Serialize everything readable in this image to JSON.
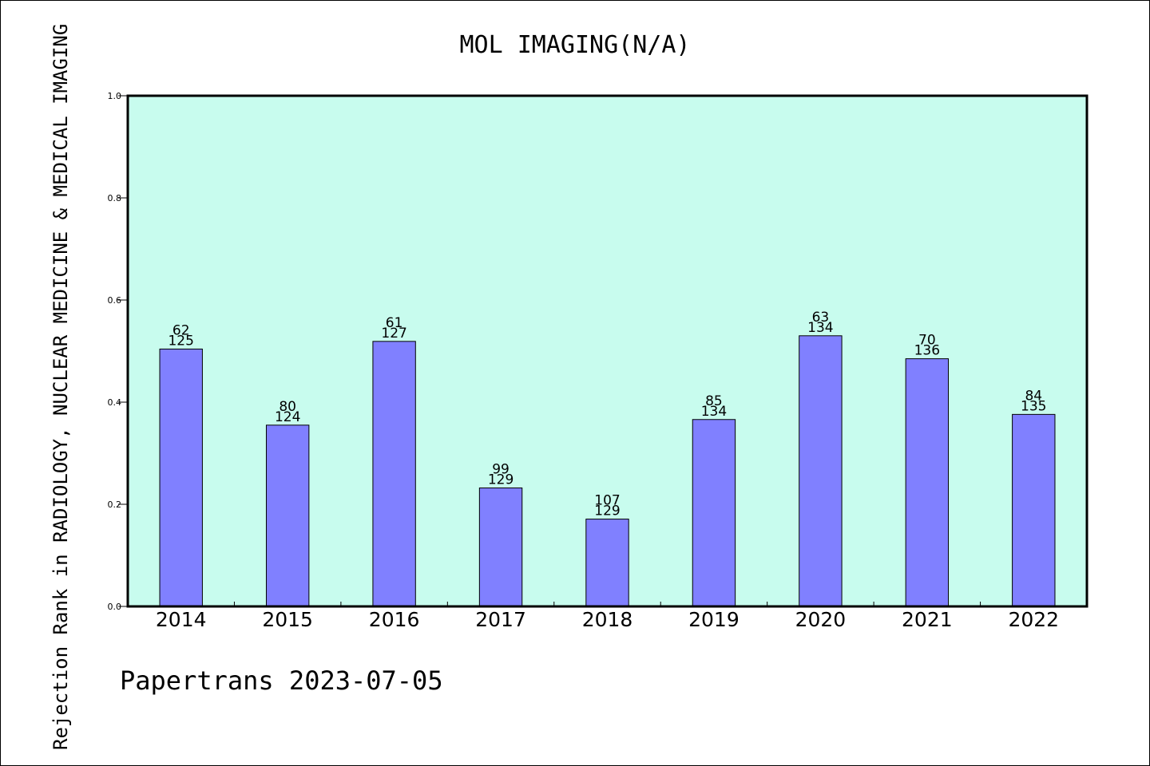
{
  "chart_data": {
    "type": "bar",
    "title": "MOL IMAGING(N/A)",
    "ylabel": "Rejection Rank in RADIOLOGY, NUCLEAR MEDICINE & MEDICAL IMAGING",
    "xlabel": "",
    "ylim": [
      0,
      1.0
    ],
    "yticks": [
      "0.0",
      "0.2",
      "0.4",
      "0.6",
      "0.8",
      "1.0"
    ],
    "categories": [
      "2014",
      "2015",
      "2016",
      "2017",
      "2018",
      "2019",
      "2020",
      "2021",
      "2022"
    ],
    "values": [
      0.504,
      0.355,
      0.519,
      0.232,
      0.171,
      0.366,
      0.53,
      0.485,
      0.376
    ],
    "labels_top": [
      "62",
      "80",
      "61",
      "99",
      "107",
      "85",
      "63",
      "70",
      "84"
    ],
    "labels_bottom": [
      "125",
      "124",
      "127",
      "129",
      "129",
      "134",
      "134",
      "136",
      "135"
    ],
    "grid": false,
    "colors": {
      "plot_background": "#c8fcee",
      "bar_fill": "#8080ff",
      "bar_stroke": "#000000",
      "axis": "#000000"
    }
  },
  "footer": {
    "text": "Papertrans 2023-07-05"
  }
}
